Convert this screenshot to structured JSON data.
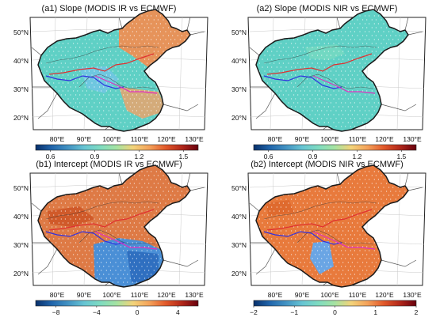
{
  "figure": {
    "panels": [
      {
        "id": "a1",
        "title": "(a1) Slope (MODIS IR vs ECMWF)",
        "lat_labels": [
          "50°N",
          "40°N",
          "30°N",
          "20°N"
        ],
        "lon_labels": [
          "80°E",
          "90°E",
          "100°E",
          "110°E",
          "120°E",
          "130°E"
        ],
        "colorbar_ticks": [
          "0.6",
          "0.9",
          "1.2",
          "1.5"
        ],
        "colorbar_range": [
          0.5,
          1.6
        ],
        "fill_pattern": "mixed-slope"
      },
      {
        "id": "a2",
        "title": "(a2) Slope (MODIS NIR vs ECMWF)",
        "lat_labels": [
          "50°N",
          "40°N",
          "30°N",
          "20°N"
        ],
        "lon_labels": [
          "80°E",
          "90°E",
          "100°E",
          "110°E",
          "120°E",
          "130°E"
        ],
        "colorbar_ticks": [
          "0.6",
          "0.9",
          "1.2",
          "1.5"
        ],
        "colorbar_range": [
          0.5,
          1.6
        ],
        "fill_pattern": "uniform-slope"
      },
      {
        "id": "b1",
        "title": "(b1) Intercept (MODIS IR vs ECMWF)",
        "lat_labels": [
          "50°N",
          "40°N",
          "30°N",
          "20°N"
        ],
        "lon_labels": [
          "80°E",
          "90°E",
          "100°E",
          "110°E",
          "120°E",
          "130°E"
        ],
        "colorbar_ticks": [
          "−8",
          "−4",
          "0",
          "4"
        ],
        "colorbar_range": [
          -10,
          6
        ],
        "fill_pattern": "intercept-ir"
      },
      {
        "id": "b2",
        "title": "(b2) Intercept (MODIS NIR vs ECMWF)",
        "lat_labels": [
          "50°N",
          "40°N",
          "30°N",
          "20°N"
        ],
        "lon_labels": [
          "80°E",
          "90°E",
          "100°E",
          "110°E",
          "120°E",
          "130°E"
        ],
        "colorbar_ticks": [
          "−2",
          "−1",
          "0",
          "1",
          "2"
        ],
        "colorbar_range": [
          -2,
          2
        ],
        "fill_pattern": "intercept-nir"
      }
    ],
    "colors": {
      "cmap": [
        "#08306b",
        "#2166ac",
        "#4393c3",
        "#67c5d3",
        "#7fdcc0",
        "#a6e3a1",
        "#f3d37a",
        "#f4a25a",
        "#e2592a",
        "#b2271a",
        "#67000d"
      ],
      "blue_green": "#5fd0c5",
      "orange": "#e87a3c",
      "blue": "#4a8fd6",
      "outline": "#1a1a1a",
      "river_red": "#e03030",
      "river_blue": "#3030e0",
      "river_pink": "#e030c0"
    }
  }
}
